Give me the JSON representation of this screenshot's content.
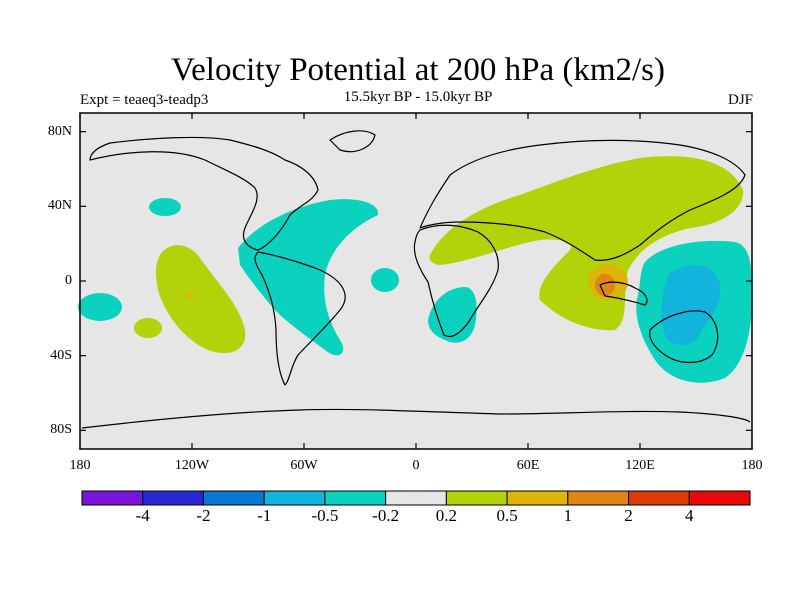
{
  "header": {
    "title": "Velocity Potential at 200 hPa (km2/s)",
    "subtitle": "15.5kyr BP - 15.0kyr BP",
    "left_label": "Expt = teaeq3-teadp3",
    "right_label": "DJF"
  },
  "axes": {
    "x_ticks": [
      "180",
      "120W",
      "60W",
      "0",
      "60E",
      "120E",
      "180"
    ],
    "y_ticks": [
      "80N",
      "40N",
      "0",
      "40S",
      "80S"
    ]
  },
  "colorbar": {
    "labels": [
      "-4",
      "-2",
      "-1",
      "-0.5",
      "-0.2",
      "0.2",
      "0.5",
      "1",
      "2",
      "4"
    ],
    "colors": [
      "#7a14dc",
      "#2828d2",
      "#0a78d2",
      "#12b4dc",
      "#0ad2be",
      "#e6e6e6",
      "#b4d20a",
      "#dcb40a",
      "#e08414",
      "#dc3c0a",
      "#e60a0a"
    ]
  },
  "map": {
    "background": "#e6e6e6",
    "field_colors": {
      "negative_0_2_to_0_5": "#0ad2be",
      "negative_0_5_to_1": "#12b4dc",
      "positive_0_2_to_0_5": "#b4d20a",
      "positive_0_5_to_1": "#dcb40a",
      "positive_1_to_2": "#e08414"
    }
  }
}
